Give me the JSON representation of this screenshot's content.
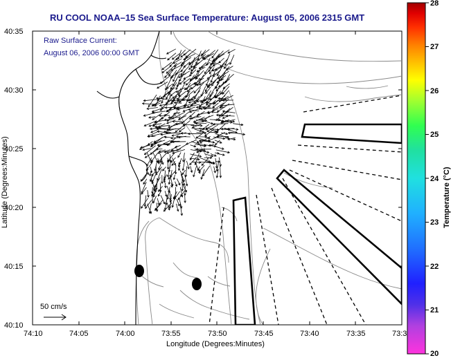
{
  "title": "RU COOL  NOAA–15  Sea Surface Temperature:  August 05, 2006 2315 GMT",
  "annotation": {
    "line1": "Raw Surface Current:",
    "line2": "August 06, 2006 00:00 GMT"
  },
  "scale_label": "50 cm/s",
  "axes": {
    "xlabel": "Longitude (Degrees:Minutes)",
    "ylabel": "Latitude (Degrees:Minutes)",
    "xticks": [
      "74:10",
      "74:05",
      "74:00",
      "73:55",
      "73:50",
      "73:45",
      "73:40",
      "73:35",
      "73:3"
    ],
    "yticks": [
      "40:35",
      "40:30",
      "40:25",
      "40:20",
      "40:15",
      "40:10"
    ]
  },
  "colorbar": {
    "label": "Temperature (°C)",
    "ticks": [
      "28",
      "27",
      "26",
      "25",
      "24",
      "23",
      "22",
      "21",
      "20"
    ],
    "colors": [
      "#ff33dd",
      "#b040e0",
      "#5030e8",
      "#2020ff",
      "#2070ff",
      "#20b0ff",
      "#20e0e0",
      "#20e0a0",
      "#30ff50",
      "#a0ff30",
      "#ffff00",
      "#ffc000",
      "#ff8000",
      "#ff3000",
      "#e00000",
      "#a00000"
    ]
  },
  "colors": {
    "title": "#1a1a8c",
    "annotation": "#1a1a8c",
    "coastline": "#000000",
    "bathymetry": "#888888"
  },
  "icons": [
    "current-vector-arrow",
    "scale-arrow",
    "buoy-marker"
  ]
}
